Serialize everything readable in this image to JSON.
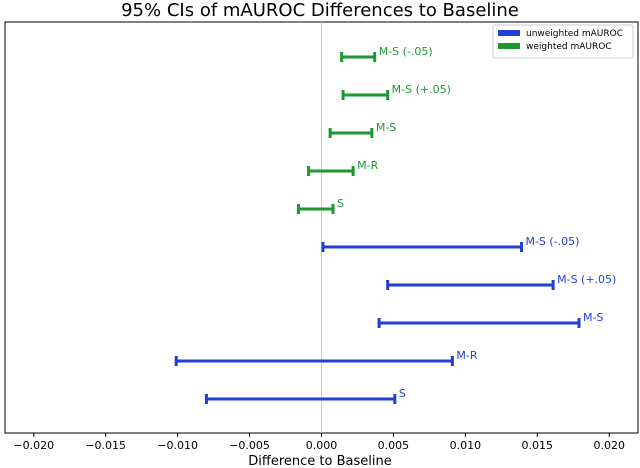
{
  "chart_data": {
    "type": "errorbar",
    "title": "95% CIs of mAUROC Differences to Baseline",
    "xlabel": "Difference to Baseline",
    "ylabel": "",
    "xlim": [
      -0.022,
      0.022
    ],
    "x_ticks": [
      -0.02,
      -0.015,
      -0.01,
      -0.005,
      0.0,
      0.005,
      0.01,
      0.015,
      0.02
    ],
    "x_tick_labels": [
      "−0.020",
      "−0.015",
      "−0.010",
      "−0.005",
      "0.000",
      "0.005",
      "0.010",
      "0.015",
      "0.020"
    ],
    "reference_line_x": 0.0,
    "grid": false,
    "legend_position": "top-right",
    "series": [
      {
        "name": "unweighted mAUROC",
        "color": "#1f3fd6",
        "intervals": [
          {
            "label": "M-S (-.05)",
            "low": 0.0001,
            "high": 0.0139
          },
          {
            "label": "M-S (+.05)",
            "low": 0.0046,
            "high": 0.0161
          },
          {
            "label": "M-S",
            "low": 0.004,
            "high": 0.0179
          },
          {
            "label": "M-R",
            "low": -0.0101,
            "high": 0.0091
          },
          {
            "label": "S",
            "low": -0.008,
            "high": 0.0051
          }
        ]
      },
      {
        "name": "weighted mAUROC",
        "color": "#1e9632",
        "intervals": [
          {
            "label": "M-S (-.05)",
            "low": 0.0014,
            "high": 0.0037
          },
          {
            "label": "M-S (+.05)",
            "low": 0.0015,
            "high": 0.0046
          },
          {
            "label": "M-S",
            "low": 0.0006,
            "high": 0.0035
          },
          {
            "label": "M-R",
            "low": -0.0009,
            "high": 0.0022
          },
          {
            "label": "S",
            "low": -0.0016,
            "high": 0.0008
          }
        ]
      }
    ],
    "row_order_top_to_bottom": [
      "weighted mAUROC:M-S (-.05)",
      "weighted mAUROC:M-S (+.05)",
      "weighted mAUROC:M-S",
      "weighted mAUROC:M-R",
      "weighted mAUROC:S",
      "unweighted mAUROC:M-S (-.05)",
      "unweighted mAUROC:M-S (+.05)",
      "unweighted mAUROC:M-S",
      "unweighted mAUROC:M-R",
      "unweighted mAUROC:S"
    ]
  }
}
